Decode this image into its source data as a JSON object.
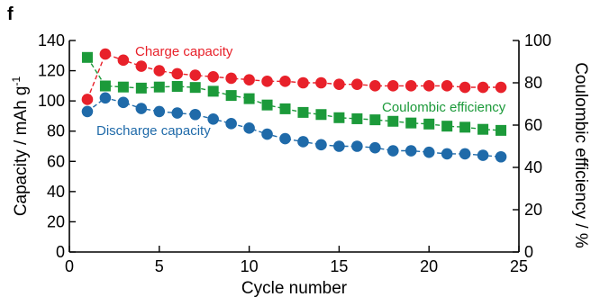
{
  "panel_label": "f",
  "colors": {
    "charge": "#e8212a",
    "discharge": "#1f6aa9",
    "coulombic": "#1c9a3a"
  },
  "chart_data": {
    "type": "line",
    "xlabel": "Cycle number",
    "ylabel": "Capacity / mAh g",
    "ylabel_superscript": "-1",
    "ylabel_right": "Coulombic efficiency / %",
    "xlim": [
      0,
      25
    ],
    "ylim": [
      0,
      140
    ],
    "ylim_right": [
      0,
      100
    ],
    "x_ticks": [
      0,
      5,
      10,
      15,
      20,
      25
    ],
    "y_ticks": [
      0,
      20,
      40,
      60,
      80,
      100,
      120,
      140
    ],
    "y_ticks_right": [
      0,
      20,
      40,
      60,
      80,
      100
    ],
    "grid": false,
    "x": [
      1,
      2,
      3,
      4,
      5,
      6,
      7,
      8,
      9,
      10,
      11,
      12,
      13,
      14,
      15,
      16,
      17,
      18,
      19,
      20,
      21,
      22,
      23,
      24
    ],
    "series": [
      {
        "name": "Charge capacity",
        "axis": "left",
        "marker": "circle",
        "color_key": "charge",
        "values": [
          101,
          131,
          127,
          123,
          120,
          118,
          117,
          116,
          115,
          114,
          113,
          113,
          112,
          112,
          111,
          111,
          110,
          110,
          110,
          110,
          110,
          109,
          109,
          109
        ]
      },
      {
        "name": "Discharge capacity",
        "axis": "left",
        "marker": "circle",
        "color_key": "discharge",
        "values": [
          93,
          102,
          99,
          95,
          93,
          92,
          91,
          88,
          85,
          82,
          78,
          75,
          73,
          71,
          70,
          70,
          69,
          67,
          67,
          66,
          65,
          65,
          64,
          63
        ]
      },
      {
        "name": "Coulombic efficiency",
        "axis": "right",
        "marker": "square",
        "color_key": "coulombic",
        "values": [
          92,
          78.5,
          78,
          77.5,
          78,
          78.3,
          77.8,
          76,
          74,
          72.5,
          69.5,
          67.7,
          66,
          65,
          63.5,
          63,
          62.5,
          61.8,
          61,
          60.5,
          59.5,
          59,
          58,
          57.5
        ]
      }
    ]
  }
}
